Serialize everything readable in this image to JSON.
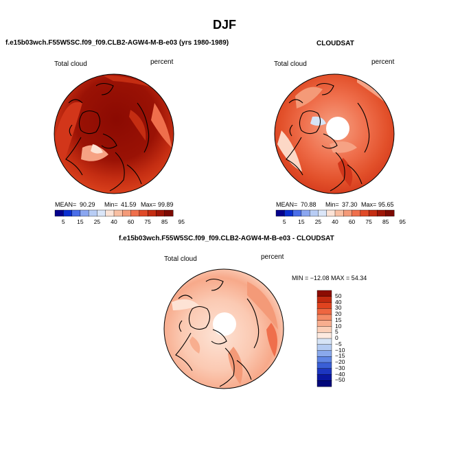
{
  "main_title": "DJF",
  "panels": [
    {
      "title": "f.e15b03wch.F55W5SC.f09_f09.CLB2-AGW4-M-B-e03 (yrs 1980-1989)",
      "variable": "Total cloud",
      "units": "percent",
      "stats": {
        "mean": "90.29",
        "min": "41.59",
        "max": "99.89"
      },
      "stat_labels": {
        "mean": "MEAN=",
        "min": "Min=",
        "max": "Max="
      }
    },
    {
      "title": "CLOUDSAT",
      "variable": "Total cloud",
      "units": "percent",
      "stats": {
        "mean": "70.88",
        "min": "37.30",
        "max": "95.65"
      },
      "stat_labels": {
        "mean": "MEAN=",
        "min": "Min=",
        "max": "Max="
      }
    },
    {
      "title": "f.e15b03wch.F55W5SC.f09_f09.CLB2-AGW4-M-B-e03 - CLOUDSAT",
      "variable": "Total cloud",
      "units": "percent",
      "stats_text": "MIN = −12.08 MAX =  54.34"
    }
  ],
  "colorbar_horizontal": {
    "ticks": [
      "5",
      "15",
      "25",
      "40",
      "60",
      "75",
      "85",
      "95"
    ],
    "colors": [
      "#04008c",
      "#0a2fd0",
      "#4a6ee8",
      "#8aa6f0",
      "#b8cdf5",
      "#dbe6f8",
      "#fce3d6",
      "#f9bfa2",
      "#f49a78",
      "#ef6f4c",
      "#e04a28",
      "#c42d12",
      "#9e1607",
      "#7c0a02"
    ]
  },
  "colorbar_vertical": {
    "ticks": [
      "50",
      "40",
      "30",
      "20",
      "15",
      "10",
      "5",
      "0",
      "−5",
      "−10",
      "−15",
      "−20",
      "−30",
      "−40",
      "−50"
    ],
    "colors": [
      "#8c0c02",
      "#c22a10",
      "#e0431f",
      "#ee6640",
      "#f48b66",
      "#f8ae8f",
      "#fbcfb8",
      "#fdeae0",
      "#d6e4f6",
      "#b4cbf2",
      "#8aa9ec",
      "#5f85e4",
      "#3a5fd6",
      "#1d36c0",
      "#0a17a0",
      "#02087a"
    ]
  },
  "colors": {
    "deep_red": "#8b0a02",
    "red": "#d2361a",
    "orange": "#ef6f4c",
    "salmon": "#f6a284",
    "light": "#fcd8c6",
    "pale": "#fdece2",
    "coast": "#000000"
  }
}
